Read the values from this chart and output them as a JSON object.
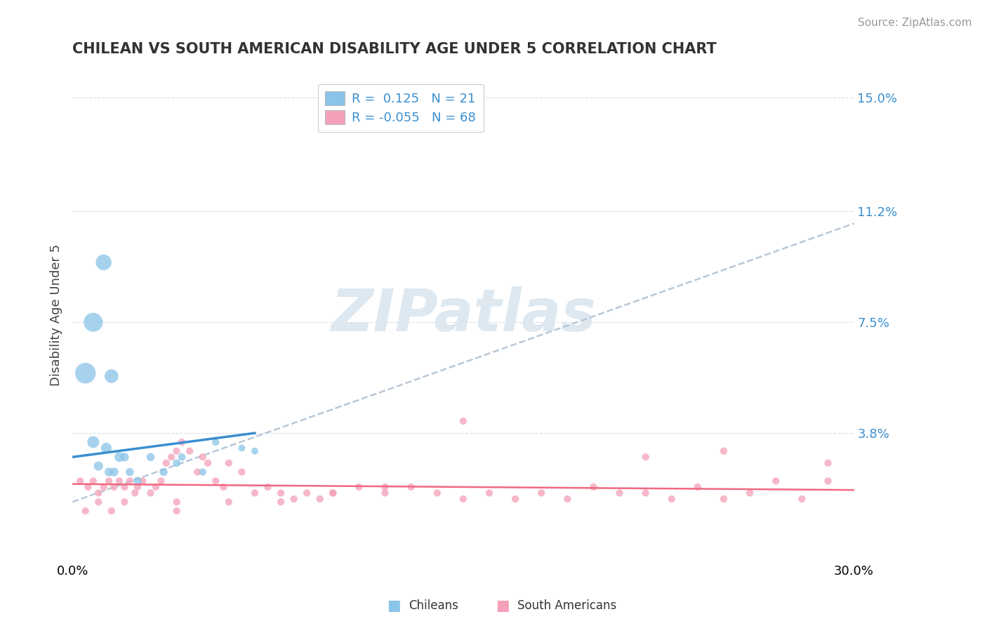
{
  "title": "CHILEAN VS SOUTH AMERICAN DISABILITY AGE UNDER 5 CORRELATION CHART",
  "source": "Source: ZipAtlas.com",
  "ylabel": "Disability Age Under 5",
  "ytick_values": [
    0.038,
    0.075,
    0.112,
    0.15
  ],
  "ytick_labels": [
    "3.8%",
    "7.5%",
    "11.2%",
    "15.0%"
  ],
  "xmin": 0.0,
  "xmax": 0.3,
  "ymin": -0.005,
  "ymax": 0.16,
  "ytop_label": "15.0%",
  "ytop_value": 0.15,
  "legend_r_chilean": " 0.125",
  "legend_n_chilean": "21",
  "legend_r_south_american": "-0.055",
  "legend_n_south_american": "68",
  "chilean_color": "#8ac4e8",
  "south_american_color": "#f4a0b8",
  "chilean_line_color": "#3a8fd0",
  "south_american_line_color": "#f06880",
  "grid_color": "#d8dde8",
  "trendline_color": "#b8c8d8",
  "watermark_color": "#dde8f0",
  "chilean_scatter_x": [
    0.008,
    0.013,
    0.018,
    0.01,
    0.014,
    0.016,
    0.02,
    0.022,
    0.025,
    0.03,
    0.035,
    0.04,
    0.042,
    0.05,
    0.055,
    0.065,
    0.07,
    0.005,
    0.008,
    0.012,
    0.015
  ],
  "chilean_scatter_y": [
    0.035,
    0.033,
    0.03,
    0.027,
    0.025,
    0.025,
    0.03,
    0.025,
    0.022,
    0.03,
    0.025,
    0.028,
    0.03,
    0.025,
    0.035,
    0.033,
    0.032,
    0.058,
    0.075,
    0.095,
    0.057
  ],
  "chilean_scatter_sizes": [
    150,
    120,
    100,
    90,
    80,
    80,
    80,
    70,
    70,
    70,
    70,
    60,
    60,
    55,
    55,
    50,
    50,
    450,
    380,
    260,
    200
  ],
  "south_american_scatter_x": [
    0.003,
    0.006,
    0.008,
    0.01,
    0.012,
    0.014,
    0.016,
    0.018,
    0.02,
    0.022,
    0.024,
    0.025,
    0.027,
    0.03,
    0.032,
    0.034,
    0.036,
    0.038,
    0.04,
    0.042,
    0.045,
    0.048,
    0.05,
    0.052,
    0.055,
    0.058,
    0.06,
    0.065,
    0.07,
    0.075,
    0.08,
    0.085,
    0.09,
    0.095,
    0.1,
    0.11,
    0.12,
    0.13,
    0.14,
    0.15,
    0.16,
    0.17,
    0.18,
    0.19,
    0.2,
    0.21,
    0.22,
    0.23,
    0.24,
    0.25,
    0.26,
    0.27,
    0.28,
    0.29,
    0.005,
    0.01,
    0.015,
    0.02,
    0.04,
    0.15,
    0.22,
    0.25,
    0.04,
    0.06,
    0.08,
    0.1,
    0.12,
    0.29
  ],
  "south_american_scatter_y": [
    0.022,
    0.02,
    0.022,
    0.018,
    0.02,
    0.022,
    0.02,
    0.022,
    0.02,
    0.022,
    0.018,
    0.02,
    0.022,
    0.018,
    0.02,
    0.022,
    0.028,
    0.03,
    0.032,
    0.035,
    0.032,
    0.025,
    0.03,
    0.028,
    0.022,
    0.02,
    0.028,
    0.025,
    0.018,
    0.02,
    0.018,
    0.016,
    0.018,
    0.016,
    0.018,
    0.02,
    0.018,
    0.02,
    0.018,
    0.016,
    0.018,
    0.016,
    0.018,
    0.016,
    0.02,
    0.018,
    0.018,
    0.016,
    0.02,
    0.016,
    0.018,
    0.022,
    0.016,
    0.022,
    0.012,
    0.015,
    0.012,
    0.015,
    0.015,
    0.042,
    0.03,
    0.032,
    0.012,
    0.015,
    0.015,
    0.018,
    0.02,
    0.028
  ],
  "chilean_trendline_x": [
    0.0,
    0.07
  ],
  "chilean_trendline_y": [
    0.03,
    0.038
  ],
  "south_american_trendline_x": [
    0.0,
    0.3
  ],
  "south_american_trendline_y": [
    0.021,
    0.019
  ],
  "global_trendline_x": [
    0.0,
    0.3
  ],
  "global_trendline_y": [
    0.015,
    0.108
  ]
}
